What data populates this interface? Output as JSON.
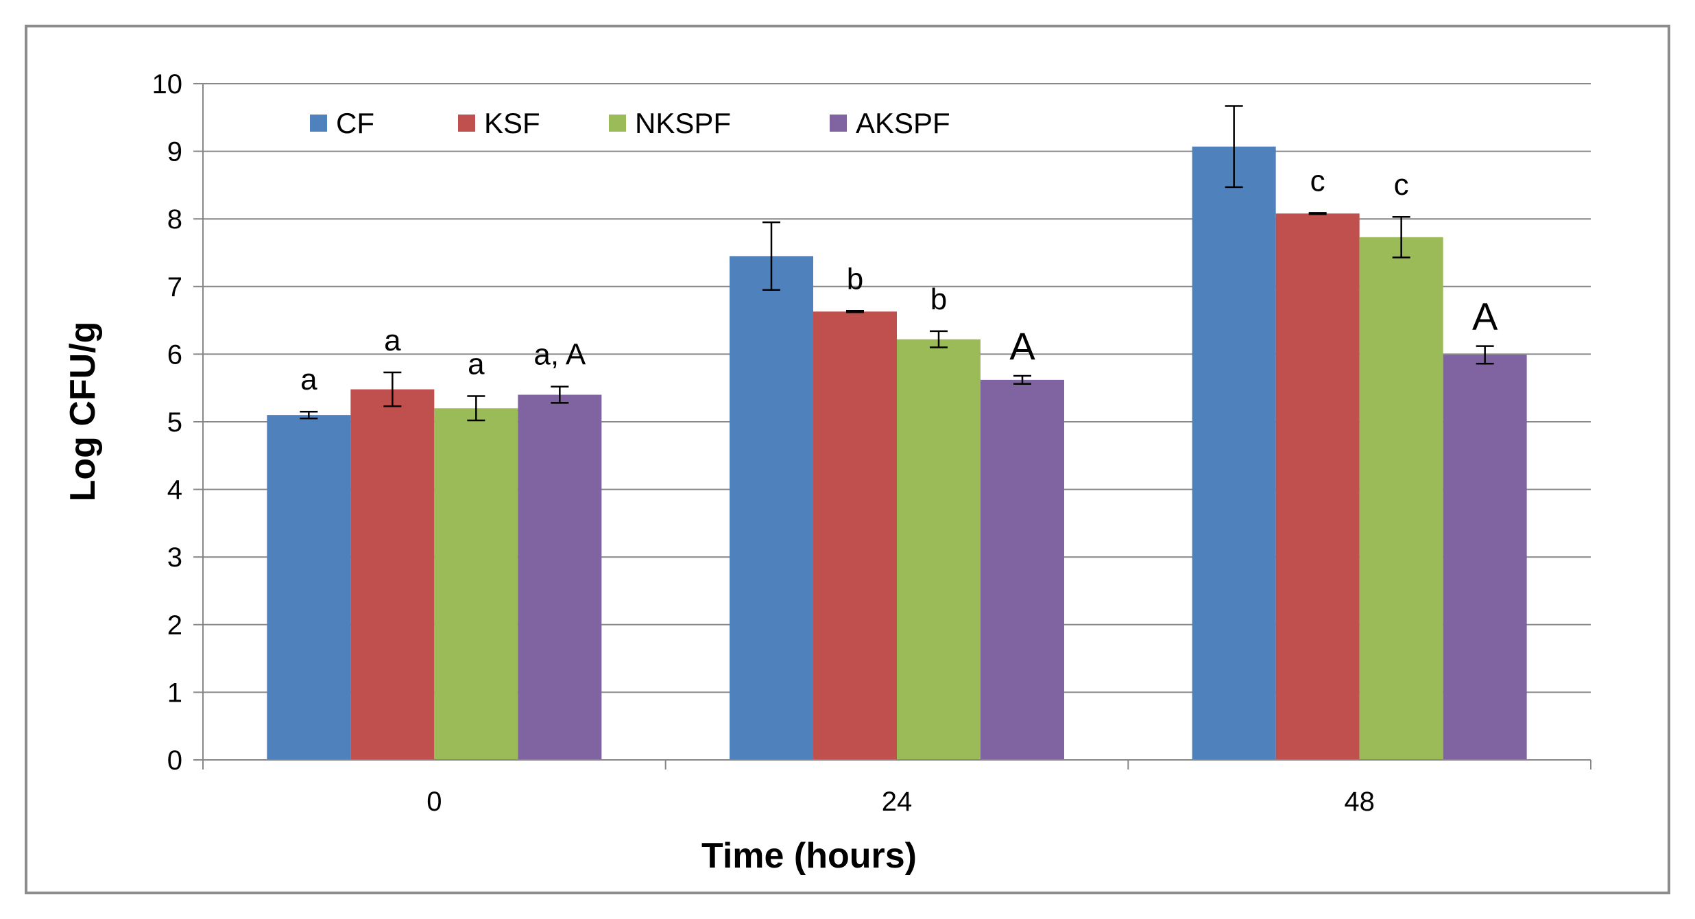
{
  "chart_data": {
    "type": "bar",
    "title": "",
    "xlabel": "Time (hours)",
    "ylabel": "Log CFU/g",
    "ylim": [
      0,
      10
    ],
    "yticks": [
      0,
      1,
      2,
      3,
      4,
      5,
      6,
      7,
      8,
      9,
      10
    ],
    "categories": [
      "0",
      "24",
      "48"
    ],
    "grid": true,
    "legend_position": "top-left",
    "series": [
      {
        "name": "CF",
        "color": "#4f81bd",
        "values": [
          5.1,
          7.45,
          9.07
        ],
        "errors": [
          0.05,
          0.5,
          0.6
        ],
        "annotations": [
          "a",
          "",
          ""
        ]
      },
      {
        "name": "KSF",
        "color": "#c0504d",
        "values": [
          5.48,
          6.63,
          8.08
        ],
        "errors": [
          0.25,
          0.01,
          0.01
        ],
        "annotations": [
          "a",
          "b",
          "c"
        ]
      },
      {
        "name": "NKSPF",
        "color": "#9bbb59",
        "values": [
          5.2,
          6.22,
          7.73
        ],
        "errors": [
          0.18,
          0.12,
          0.3
        ],
        "annotations": [
          "a",
          "b",
          "c"
        ]
      },
      {
        "name": "AKSPF",
        "color": "#8064a2",
        "values": [
          5.4,
          5.62,
          5.99
        ],
        "errors": [
          0.12,
          0.06,
          0.13
        ],
        "annotations": [
          "a, A",
          "A",
          "A"
        ]
      }
    ]
  }
}
